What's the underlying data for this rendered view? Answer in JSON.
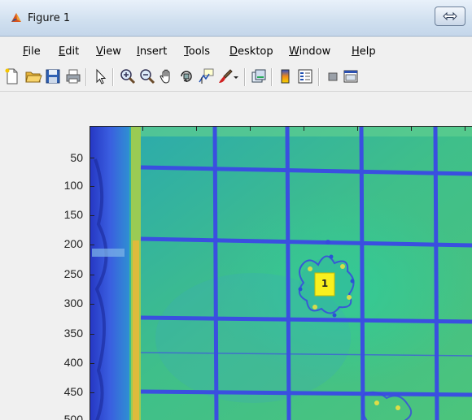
{
  "window": {
    "title": "Figure 1",
    "icon": "matlab-icon",
    "controls": [
      "restore-icon"
    ]
  },
  "menubar": {
    "items": [
      {
        "label": "File",
        "mnemonic": "F",
        "rest": "ile"
      },
      {
        "label": "Edit",
        "mnemonic": "E",
        "rest": "dit"
      },
      {
        "label": "View",
        "mnemonic": "V",
        "rest": "iew"
      },
      {
        "label": "Insert",
        "mnemonic": "I",
        "rest": "nsert"
      },
      {
        "label": "Tools",
        "mnemonic": "T",
        "rest": "ools"
      },
      {
        "label": "Desktop",
        "mnemonic": "D",
        "rest": "esktop"
      },
      {
        "label": "Window",
        "mnemonic": "W",
        "rest": "indow"
      },
      {
        "label": "Help",
        "mnemonic": "H",
        "rest": "elp"
      }
    ]
  },
  "toolbar": {
    "buttons": [
      "new-figure-icon",
      "open-file-icon",
      "save-icon",
      "print-icon",
      "edit-plot-icon",
      "zoom-in-icon",
      "zoom-out-icon",
      "pan-icon",
      "rotate-3d-icon",
      "data-cursor-icon",
      "brush-icon",
      "brush-dropdown-icon",
      "link-plot-icon",
      "insert-colorbar-icon",
      "insert-legend-icon",
      "hide-plot-tools-icon",
      "show-plot-tools-icon"
    ]
  },
  "axes": {
    "y_ticks": [
      "50",
      "100",
      "150",
      "200",
      "250",
      "300",
      "350",
      "400",
      "450",
      "500"
    ],
    "marker_label": "1",
    "colormap": "parula",
    "colors": {
      "background_field": "#2fb3a6",
      "grid_line": "#3a4fe0",
      "left_strip": "#3348d8",
      "edge_band": "#e6c43a",
      "marker": "#f9f01e"
    }
  }
}
